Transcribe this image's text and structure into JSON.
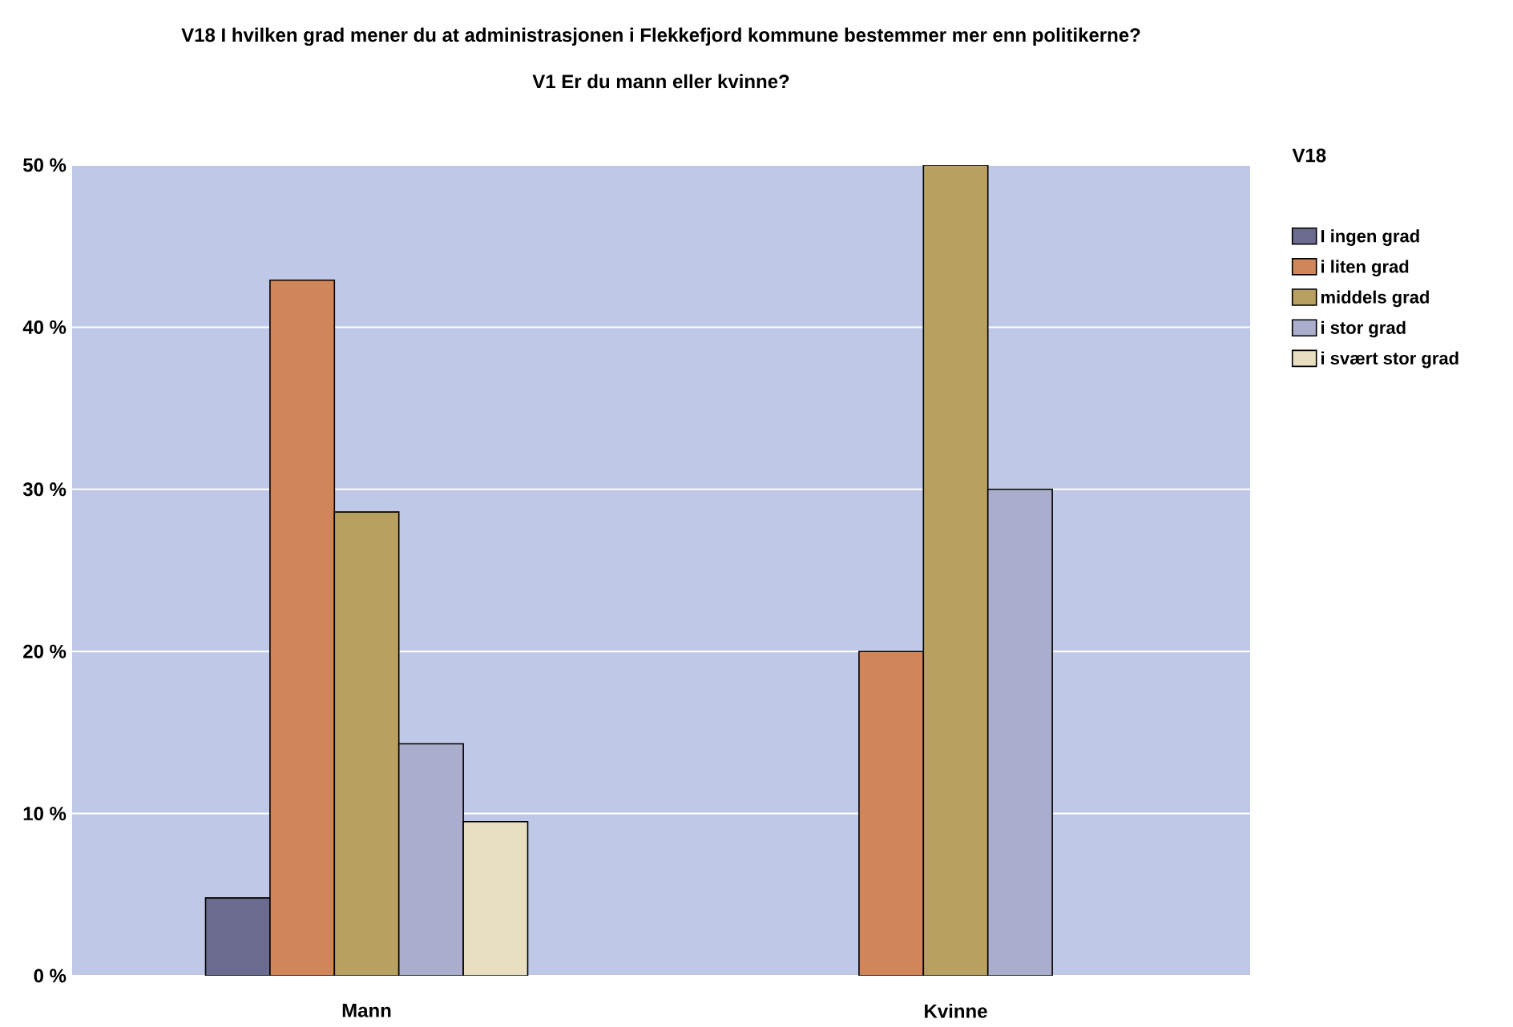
{
  "chart_data": {
    "type": "bar",
    "title": "V18 I hvilken grad mener du at administrasjonen i Flekkefjord kommune bestemmer mer enn politikerne?",
    "subtitle": "V1 Er du mann eller kvinne?",
    "legend_title": "V18",
    "categories": [
      "Mann",
      "Kvinne"
    ],
    "series": [
      {
        "name": "I ingen grad",
        "color": "#6b6b8f",
        "values": [
          4.8,
          null
        ]
      },
      {
        "name": "i liten grad",
        "color": "#d08658",
        "values": [
          42.9,
          20
        ]
      },
      {
        "name": "middels grad",
        "color": "#b8a060",
        "values": [
          28.6,
          50
        ]
      },
      {
        "name": "i stor grad",
        "color": "#abadcc",
        "values": [
          14.3,
          30
        ]
      },
      {
        "name": "i svært stor grad",
        "color": "#e8dfc0",
        "values": [
          9.5,
          null
        ]
      }
    ],
    "ylim": [
      0,
      50
    ],
    "yticks": [
      {
        "value": 0,
        "label": "0 %"
      },
      {
        "value": 10,
        "label": "10 %"
      },
      {
        "value": 20,
        "label": "20 %"
      },
      {
        "value": 30,
        "label": "30 %"
      },
      {
        "value": 40,
        "label": "40 %"
      },
      {
        "value": 50,
        "label": "50 %"
      }
    ],
    "grid": "y",
    "legend": "right"
  }
}
